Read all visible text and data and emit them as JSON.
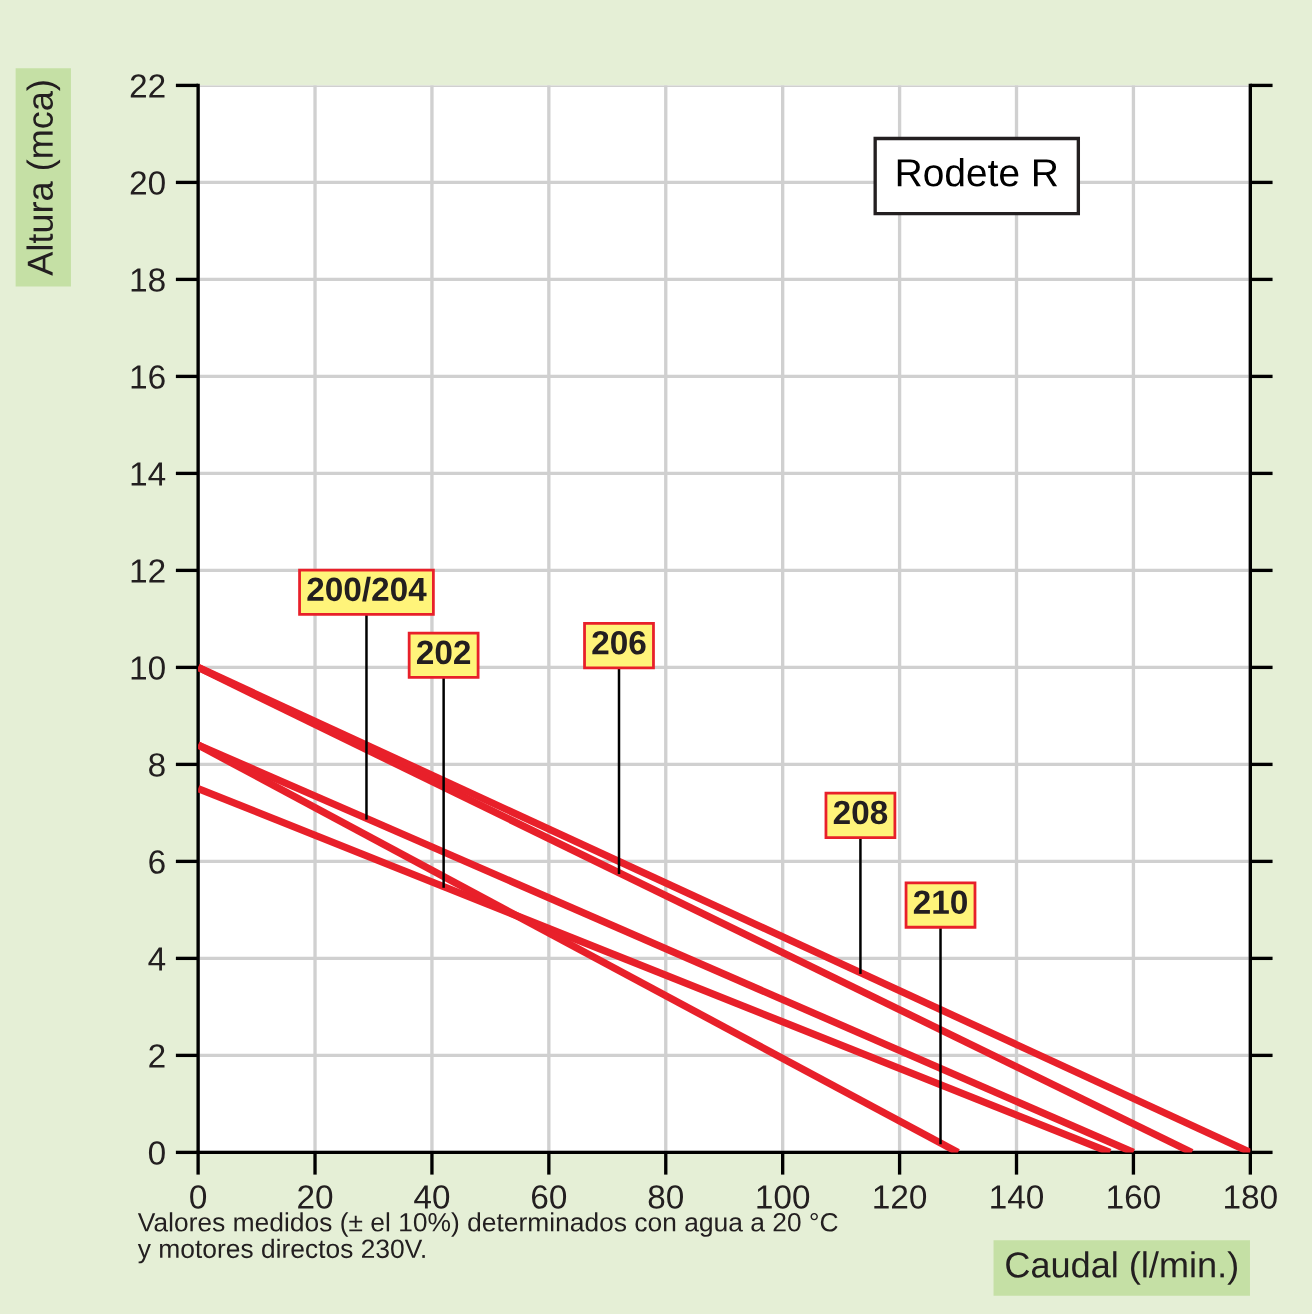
{
  "chart_data": {
    "type": "line",
    "ylabel": "Altura (mca)",
    "xlabel": "Caudal (l/min.)",
    "annotations": [
      "Rodete R",
      "Valores medidos (± el 10%) determinados con agua a 20 °C\ny motores directos 230V."
    ],
    "series": [
      {
        "name": "200/204",
        "color": "#e8202a",
        "x": [
          0,
          160
        ],
        "values": [
          8.4,
          0
        ]
      },
      {
        "name": "202",
        "color": "#e8202a",
        "x": [
          0,
          156
        ],
        "values": [
          7.5,
          0
        ]
      },
      {
        "name": "206",
        "color": "#e8202a",
        "x": [
          0,
          170
        ],
        "values": [
          10,
          0
        ]
      },
      {
        "name": "208",
        "color": "#e8202a",
        "x": [
          0,
          180
        ],
        "values": [
          10,
          0
        ]
      },
      {
        "name": "210",
        "color": "#e8202a",
        "x": [
          0,
          130
        ],
        "values": [
          8.4,
          0
        ]
      }
    ],
    "xlim": [
      0,
      180
    ],
    "xticks": [
      0,
      20,
      40,
      60,
      80,
      100,
      120,
      140,
      160,
      180
    ],
    "ylim": [
      0,
      22
    ],
    "yticks": [
      0,
      2,
      4,
      6,
      8,
      10,
      12,
      14,
      16,
      18,
      20,
      22
    ],
    "grid": true,
    "legend": false,
    "marker": "none",
    "line_style": "solid"
  }
}
